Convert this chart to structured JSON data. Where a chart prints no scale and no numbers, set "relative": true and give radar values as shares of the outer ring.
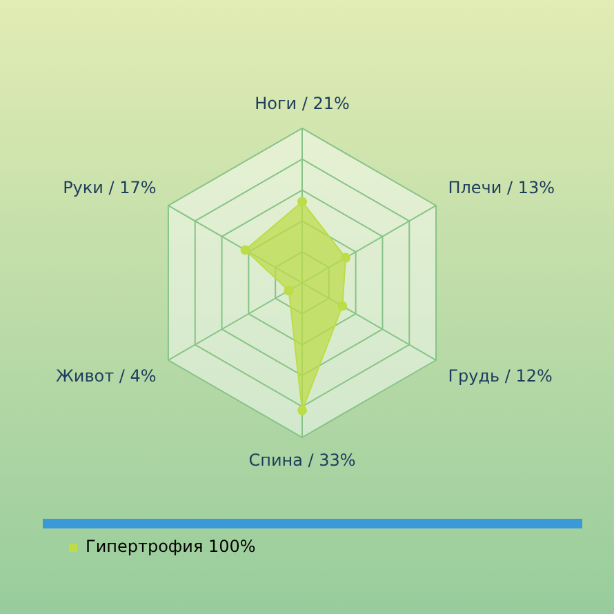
{
  "chart_data": {
    "type": "radar",
    "relative": true,
    "categories": [
      "Ноги / 21%",
      "Плечи / 13%",
      "Грудь / 12%",
      "Спина / 33%",
      "Живот / 4%",
      "Руки / 17%"
    ],
    "series": [
      {
        "name": "Гипертрофия 100%",
        "color": "#bcdc48",
        "values": [
          0.525,
          0.325,
          0.3,
          0.825,
          0.1,
          0.425
        ]
      }
    ],
    "legend": "bottom left",
    "marker": "circle",
    "grid": true
  }
}
